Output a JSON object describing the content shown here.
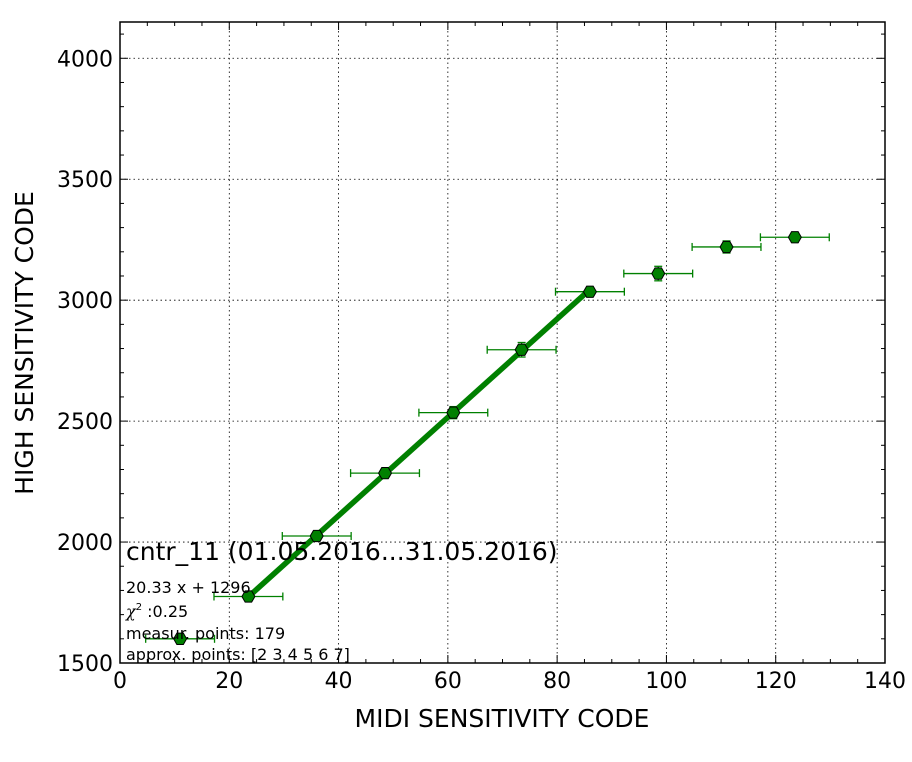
{
  "chart_data": {
    "type": "scatter",
    "xlabel": "MIDI SENSITIVITY CODE",
    "ylabel": "HIGH SENSITIVITY CODE",
    "xlim": [
      0,
      140
    ],
    "ylim": [
      1500,
      4150
    ],
    "x_ticks": [
      "0",
      "20",
      "40",
      "60",
      "80",
      "100",
      "120",
      "140"
    ],
    "y_ticks": [
      "1500",
      "2000",
      "2500",
      "3000",
      "3500",
      "4000"
    ],
    "x_tick_values": [
      0,
      20,
      40,
      60,
      80,
      100,
      120,
      140
    ],
    "y_tick_values": [
      1500,
      2000,
      2500,
      3000,
      3500,
      4000
    ],
    "grid": true,
    "colors": {
      "series": "#008000",
      "line": "#008000",
      "grid": "#000000"
    },
    "points": [
      {
        "x": 11.0,
        "y": 1600,
        "xerr": 6.3,
        "yerr": 8
      },
      {
        "x": 23.5,
        "y": 1775,
        "xerr": 6.3,
        "yerr": 10
      },
      {
        "x": 36.0,
        "y": 2025,
        "xerr": 6.3,
        "yerr": 12
      },
      {
        "x": 48.5,
        "y": 2285,
        "xerr": 6.3,
        "yerr": 15
      },
      {
        "x": 61.0,
        "y": 2535,
        "xerr": 6.3,
        "yerr": 25
      },
      {
        "x": 73.5,
        "y": 2795,
        "xerr": 6.3,
        "yerr": 30
      },
      {
        "x": 86.0,
        "y": 3035,
        "xerr": 6.3,
        "yerr": 18
      },
      {
        "x": 98.5,
        "y": 3110,
        "xerr": 6.3,
        "yerr": 30
      },
      {
        "x": 111.0,
        "y": 3220,
        "xerr": 6.3,
        "yerr": 25
      },
      {
        "x": 123.5,
        "y": 3260,
        "xerr": 6.3,
        "yerr": 20
      }
    ],
    "fit": {
      "slope": 20.33,
      "intercept": 1296,
      "x_range": [
        23.5,
        86.0
      ]
    },
    "annotations": {
      "title": "cntr_11 (01.05.2016...31.05.2016)",
      "equation": "20.33 x + 1296",
      "chi2_symbol": "χ",
      "chi2_sup": "2",
      "chi2_value": " :0.25",
      "measur_points": "measur. points: 179",
      "approx_points": "approx. points: [2 3 4 5 6 7]"
    }
  }
}
